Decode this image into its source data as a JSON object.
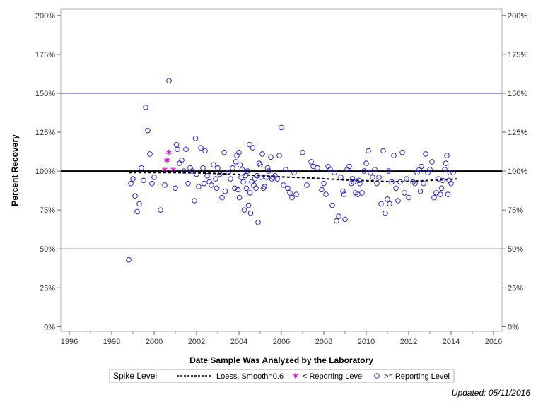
{
  "chart_data": {
    "type": "scatter",
    "xlabel": "Date Sample Was Analyzed by the Laboratory",
    "ylabel": "Percent Recovery",
    "xlim": [
      1995.6,
      2016.4
    ],
    "ylim": [
      -3,
      204
    ],
    "x_ticks": [
      1996,
      1998,
      2000,
      2002,
      2004,
      2006,
      2008,
      2010,
      2012,
      2014,
      2016
    ],
    "x_tick_labels": [
      "1996",
      "1998",
      "2000",
      "2002",
      "2004",
      "2006",
      "2008",
      "2010",
      "2012",
      "2014",
      "2016"
    ],
    "y_ticks": [
      0,
      25,
      50,
      75,
      100,
      125,
      150,
      175,
      200
    ],
    "y_tick_labels": [
      "0%",
      "25%",
      "50%",
      "75%",
      "100%",
      "125%",
      "150%",
      "175%",
      "200%"
    ],
    "reference_lines": [
      50,
      100,
      150
    ],
    "grid": false,
    "legend_position": "bottom",
    "legend_title": "Spike Level",
    "legend_entries": [
      "Loess, Smooth=0.6",
      "< Reporting Level",
      ">= Reporting Level"
    ],
    "colors": {
      "ge_reporting": "#2a2ab8",
      "lt_reporting": "#d400c8",
      "loess": "#000000",
      "ref_line": "#3a3a9a"
    },
    "series": [
      {
        "name": "Loess, Smooth=0.6",
        "kind": "line",
        "x": [
          1998.8,
          2000.0,
          2001.0,
          2002.0,
          2003.0,
          2004.0,
          2005.0,
          2006.0,
          2007.0,
          2008.0,
          2009.0,
          2010.0,
          2011.0,
          2012.0,
          2013.0,
          2014.0,
          2014.3
        ],
        "y": [
          99,
          99,
          99,
          98.8,
          98.4,
          97.8,
          97,
          96.3,
          95.8,
          95.1,
          94.3,
          93.8,
          93.3,
          93.3,
          94,
          94.7,
          95
        ]
      },
      {
        "name": "< Reporting Level",
        "kind": "star",
        "x": [
          2000.5,
          2000.6,
          2000.7,
          2000.9
        ],
        "y": [
          101,
          107,
          112,
          101
        ]
      },
      {
        "name": ">= Reporting Level",
        "kind": "circle",
        "points": [
          [
            1998.8,
            43
          ],
          [
            1998.9,
            92
          ],
          [
            1999.0,
            95
          ],
          [
            1999.1,
            84
          ],
          [
            1999.2,
            74
          ],
          [
            1999.3,
            79
          ],
          [
            1999.4,
            102
          ],
          [
            1999.5,
            94
          ],
          [
            1999.6,
            141
          ],
          [
            1999.7,
            126
          ],
          [
            1999.8,
            111
          ],
          [
            1999.9,
            92
          ],
          [
            2000.0,
            96
          ],
          [
            2000.3,
            75
          ],
          [
            2000.5,
            91
          ],
          [
            2000.7,
            158
          ],
          [
            2001.0,
            89
          ],
          [
            2001.05,
            117
          ],
          [
            2001.1,
            114
          ],
          [
            2001.2,
            105
          ],
          [
            2001.3,
            107
          ],
          [
            2001.4,
            100
          ],
          [
            2001.5,
            114
          ],
          [
            2001.6,
            92
          ],
          [
            2001.7,
            102
          ],
          [
            2001.8,
            100
          ],
          [
            2001.9,
            81
          ],
          [
            2001.95,
            121
          ],
          [
            2002.0,
            98
          ],
          [
            2002.1,
            90
          ],
          [
            2002.2,
            115
          ],
          [
            2002.3,
            102
          ],
          [
            2002.35,
            92
          ],
          [
            2002.4,
            113
          ],
          [
            2002.5,
            97
          ],
          [
            2002.6,
            93
          ],
          [
            2002.7,
            91
          ],
          [
            2002.8,
            104
          ],
          [
            2002.9,
            95
          ],
          [
            2002.95,
            89
          ],
          [
            2003.0,
            102
          ],
          [
            2003.1,
            98
          ],
          [
            2003.2,
            83
          ],
          [
            2003.3,
            112
          ],
          [
            2003.35,
            87
          ],
          [
            2003.5,
            99
          ],
          [
            2003.6,
            95
          ],
          [
            2003.7,
            102
          ],
          [
            2003.8,
            89
          ],
          [
            2003.85,
            106
          ],
          [
            2003.9,
            110
          ],
          [
            2003.95,
            88
          ],
          [
            2004.0,
            112
          ],
          [
            2004.02,
            83
          ],
          [
            2004.05,
            104
          ],
          [
            2004.1,
            96
          ],
          [
            2004.15,
            101
          ],
          [
            2004.2,
            93
          ],
          [
            2004.25,
            75
          ],
          [
            2004.3,
            97
          ],
          [
            2004.35,
            89
          ],
          [
            2004.4,
            100
          ],
          [
            2004.45,
            78
          ],
          [
            2004.5,
            117
          ],
          [
            2004.52,
            86
          ],
          [
            2004.55,
            73
          ],
          [
            2004.6,
            93
          ],
          [
            2004.65,
            115
          ],
          [
            2004.7,
            91
          ],
          [
            2004.75,
            95
          ],
          [
            2004.8,
            89
          ],
          [
            2004.85,
            97
          ],
          [
            2004.9,
            67
          ],
          [
            2004.95,
            105
          ],
          [
            2005.0,
            104
          ],
          [
            2005.05,
            96
          ],
          [
            2005.1,
            111
          ],
          [
            2005.15,
            89
          ],
          [
            2005.2,
            90
          ],
          [
            2005.3,
            96
          ],
          [
            2005.35,
            102
          ],
          [
            2005.4,
            100
          ],
          [
            2005.5,
            109
          ],
          [
            2005.55,
            95
          ],
          [
            2005.6,
            96
          ],
          [
            2005.7,
            97
          ],
          [
            2005.8,
            95
          ],
          [
            2005.9,
            110
          ],
          [
            2006.0,
            128
          ],
          [
            2006.1,
            91
          ],
          [
            2006.2,
            101
          ],
          [
            2006.3,
            89
          ],
          [
            2006.4,
            86
          ],
          [
            2006.5,
            83
          ],
          [
            2006.6,
            99
          ],
          [
            2006.7,
            85
          ],
          [
            2007.0,
            112
          ],
          [
            2007.2,
            91
          ],
          [
            2007.4,
            106
          ],
          [
            2007.5,
            103
          ],
          [
            2007.7,
            102
          ],
          [
            2007.9,
            88
          ],
          [
            2008.0,
            92
          ],
          [
            2008.1,
            85
          ],
          [
            2008.2,
            103
          ],
          [
            2008.3,
            101
          ],
          [
            2008.4,
            78
          ],
          [
            2008.5,
            99
          ],
          [
            2008.6,
            68
          ],
          [
            2008.7,
            71
          ],
          [
            2008.8,
            96
          ],
          [
            2008.9,
            87
          ],
          [
            2008.95,
            85
          ],
          [
            2009.0,
            69
          ],
          [
            2009.1,
            101
          ],
          [
            2009.2,
            103
          ],
          [
            2009.3,
            92
          ],
          [
            2009.35,
            95
          ],
          [
            2009.4,
            93
          ],
          [
            2009.5,
            86
          ],
          [
            2009.6,
            85
          ],
          [
            2009.65,
            94
          ],
          [
            2009.7,
            92
          ],
          [
            2009.8,
            86
          ],
          [
            2009.9,
            100
          ],
          [
            2010.0,
            105
          ],
          [
            2010.1,
            113
          ],
          [
            2010.2,
            99
          ],
          [
            2010.3,
            96
          ],
          [
            2010.4,
            101
          ],
          [
            2010.5,
            92
          ],
          [
            2010.6,
            96
          ],
          [
            2010.7,
            79
          ],
          [
            2010.8,
            113
          ],
          [
            2010.9,
            73
          ],
          [
            2011.0,
            82
          ],
          [
            2011.05,
            100
          ],
          [
            2011.1,
            79
          ],
          [
            2011.2,
            93
          ],
          [
            2011.3,
            110
          ],
          [
            2011.4,
            89
          ],
          [
            2011.5,
            81
          ],
          [
            2011.6,
            93
          ],
          [
            2011.7,
            112
          ],
          [
            2011.8,
            86
          ],
          [
            2011.9,
            95
          ],
          [
            2012.0,
            83
          ],
          [
            2012.2,
            93
          ],
          [
            2012.3,
            92
          ],
          [
            2012.4,
            99
          ],
          [
            2012.5,
            101
          ],
          [
            2012.55,
            87
          ],
          [
            2012.6,
            103
          ],
          [
            2012.7,
            92
          ],
          [
            2012.8,
            111
          ],
          [
            2012.9,
            99
          ],
          [
            2013.0,
            101
          ],
          [
            2013.1,
            106
          ],
          [
            2013.2,
            83
          ],
          [
            2013.3,
            86
          ],
          [
            2013.4,
            95
          ],
          [
            2013.5,
            85
          ],
          [
            2013.55,
            89
          ],
          [
            2013.6,
            94
          ],
          [
            2013.7,
            101
          ],
          [
            2013.75,
            105
          ],
          [
            2013.8,
            110
          ],
          [
            2013.85,
            85
          ],
          [
            2013.9,
            94
          ],
          [
            2013.95,
            99
          ],
          [
            2014.0,
            92
          ],
          [
            2014.1,
            99
          ]
        ]
      }
    ]
  },
  "footer": {
    "updated": "Updated: 05/11/2016"
  }
}
